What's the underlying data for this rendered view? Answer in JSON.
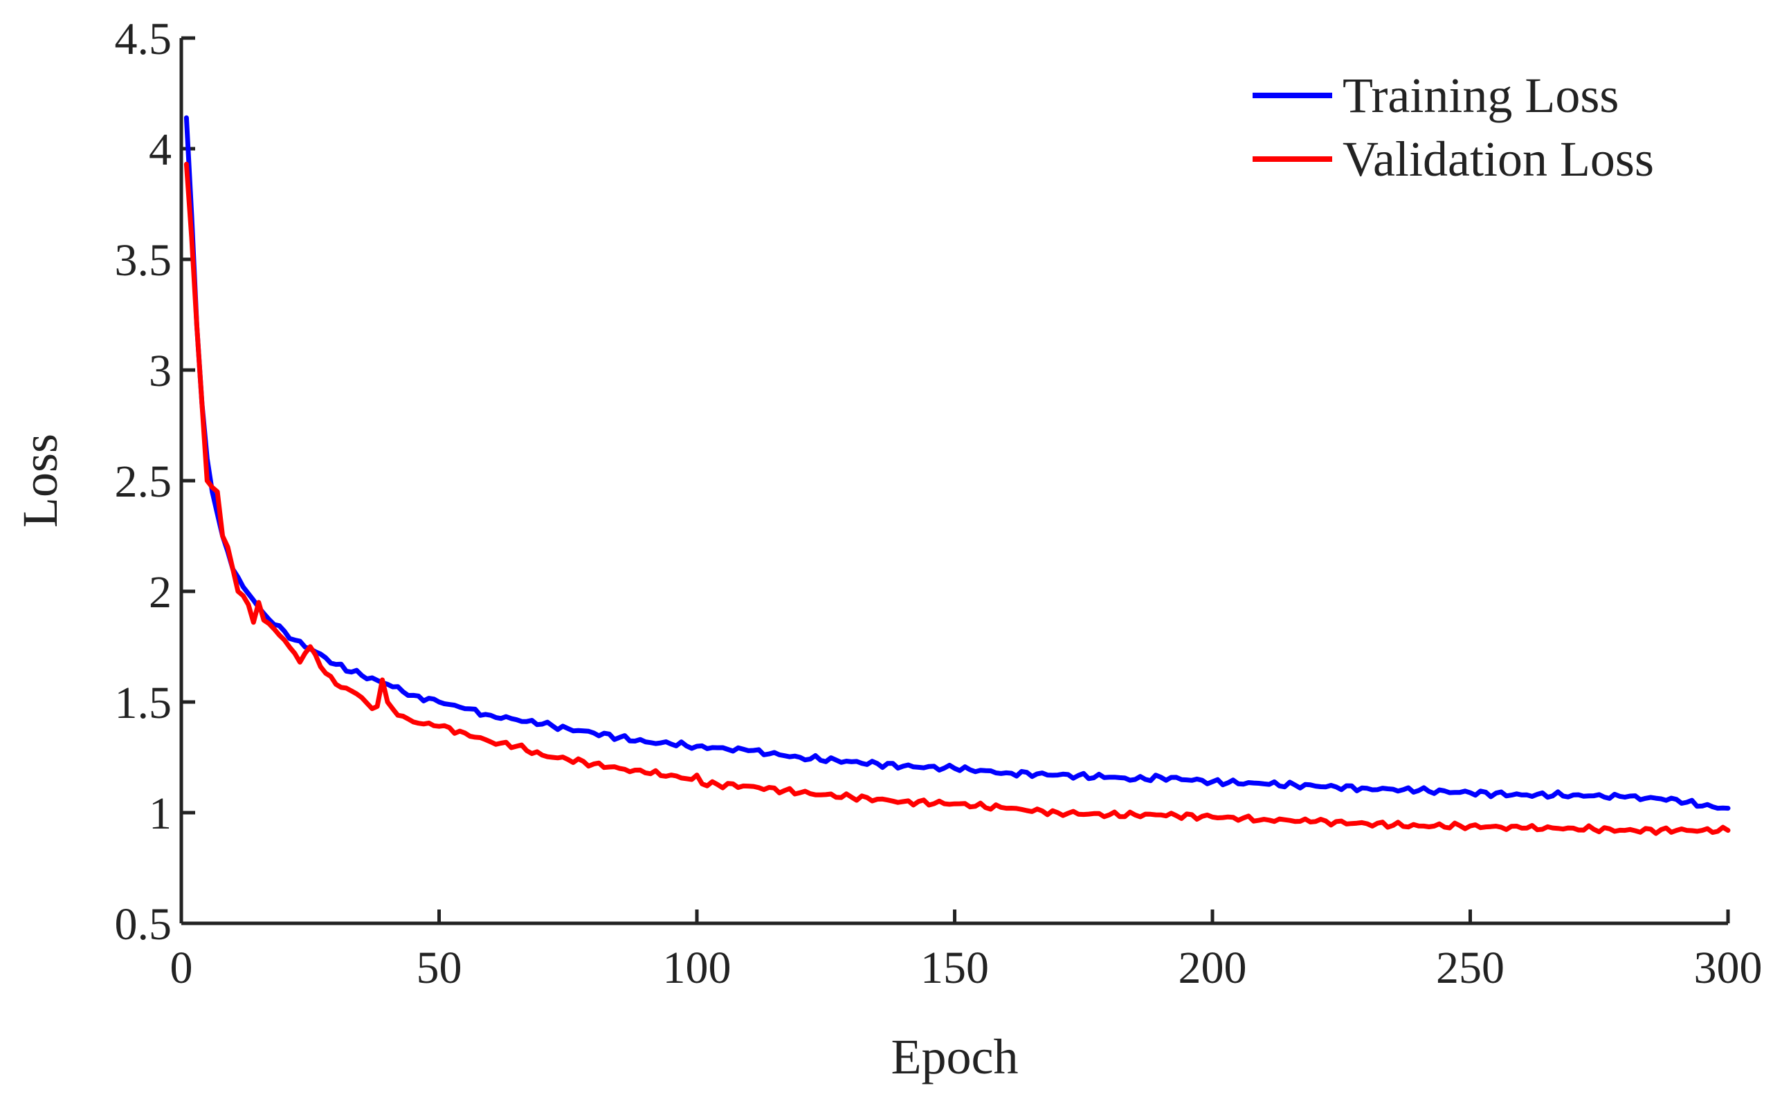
{
  "chart_data": {
    "type": "line",
    "title": "",
    "xlabel": "Epoch",
    "ylabel": "Loss",
    "xlim": [
      0,
      300
    ],
    "ylim": [
      0.5,
      4.5
    ],
    "xticks": [
      0,
      50,
      100,
      150,
      200,
      250,
      300
    ],
    "xtick_labels": [
      "0",
      "50",
      "100",
      "150",
      "200",
      "250",
      "300"
    ],
    "yticks": [
      0.5,
      1,
      1.5,
      2,
      2.5,
      3,
      3.5,
      4,
      4.5
    ],
    "ytick_labels": [
      "0.5",
      "1",
      "1.5",
      "2",
      "2.5",
      "3",
      "3.5",
      "4",
      "4.5"
    ],
    "grid": false,
    "legend_position": "top-right",
    "series": [
      {
        "name": "Training Loss",
        "color": "#0000ff",
        "x": [
          1,
          2,
          3,
          4,
          5,
          6,
          7,
          8,
          9,
          10,
          12,
          14,
          16,
          18,
          20,
          22,
          25,
          28,
          30,
          35,
          40,
          45,
          50,
          55,
          60,
          65,
          70,
          75,
          80,
          85,
          90,
          95,
          100,
          110,
          120,
          130,
          140,
          150,
          160,
          170,
          180,
          185,
          190,
          200,
          210,
          220,
          230,
          240,
          250,
          260,
          270,
          280,
          290,
          295,
          300
        ],
        "values": [
          4.14,
          3.7,
          3.2,
          2.85,
          2.6,
          2.45,
          2.35,
          2.25,
          2.18,
          2.1,
          2.02,
          1.96,
          1.9,
          1.85,
          1.82,
          1.78,
          1.74,
          1.7,
          1.67,
          1.62,
          1.58,
          1.53,
          1.5,
          1.47,
          1.44,
          1.42,
          1.4,
          1.38,
          1.36,
          1.34,
          1.32,
          1.31,
          1.3,
          1.28,
          1.25,
          1.23,
          1.21,
          1.2,
          1.18,
          1.17,
          1.16,
          1.15,
          1.16,
          1.14,
          1.13,
          1.12,
          1.11,
          1.1,
          1.09,
          1.08,
          1.08,
          1.07,
          1.06,
          1.03,
          1.02
        ]
      },
      {
        "name": "Validation Loss",
        "color": "#ff0000",
        "x": [
          1,
          2,
          3,
          4,
          5,
          6,
          7,
          8,
          9,
          10,
          11,
          12,
          13,
          14,
          15,
          16,
          18,
          20,
          22,
          23,
          24,
          25,
          27,
          28,
          30,
          33,
          35,
          37,
          38,
          39,
          40,
          42,
          45,
          50,
          55,
          60,
          65,
          70,
          75,
          80,
          85,
          90,
          95,
          99,
          100,
          101,
          110,
          120,
          130,
          140,
          150,
          160,
          170,
          180,
          190,
          200,
          210,
          220,
          230,
          240,
          250,
          260,
          270,
          280,
          290,
          295,
          300
        ],
        "values": [
          3.93,
          3.6,
          3.2,
          2.85,
          2.5,
          2.47,
          2.45,
          2.25,
          2.2,
          2.1,
          2.0,
          1.98,
          1.94,
          1.86,
          1.95,
          1.87,
          1.83,
          1.78,
          1.72,
          1.68,
          1.72,
          1.75,
          1.66,
          1.63,
          1.58,
          1.55,
          1.52,
          1.47,
          1.48,
          1.6,
          1.5,
          1.44,
          1.41,
          1.39,
          1.36,
          1.32,
          1.3,
          1.26,
          1.24,
          1.22,
          1.2,
          1.18,
          1.17,
          1.15,
          1.17,
          1.13,
          1.12,
          1.09,
          1.07,
          1.05,
          1.04,
          1.02,
          1.0,
          0.99,
          0.99,
          0.98,
          0.97,
          0.96,
          0.95,
          0.94,
          0.94,
          0.93,
          0.93,
          0.92,
          0.92,
          0.92,
          0.92
        ]
      }
    ]
  }
}
